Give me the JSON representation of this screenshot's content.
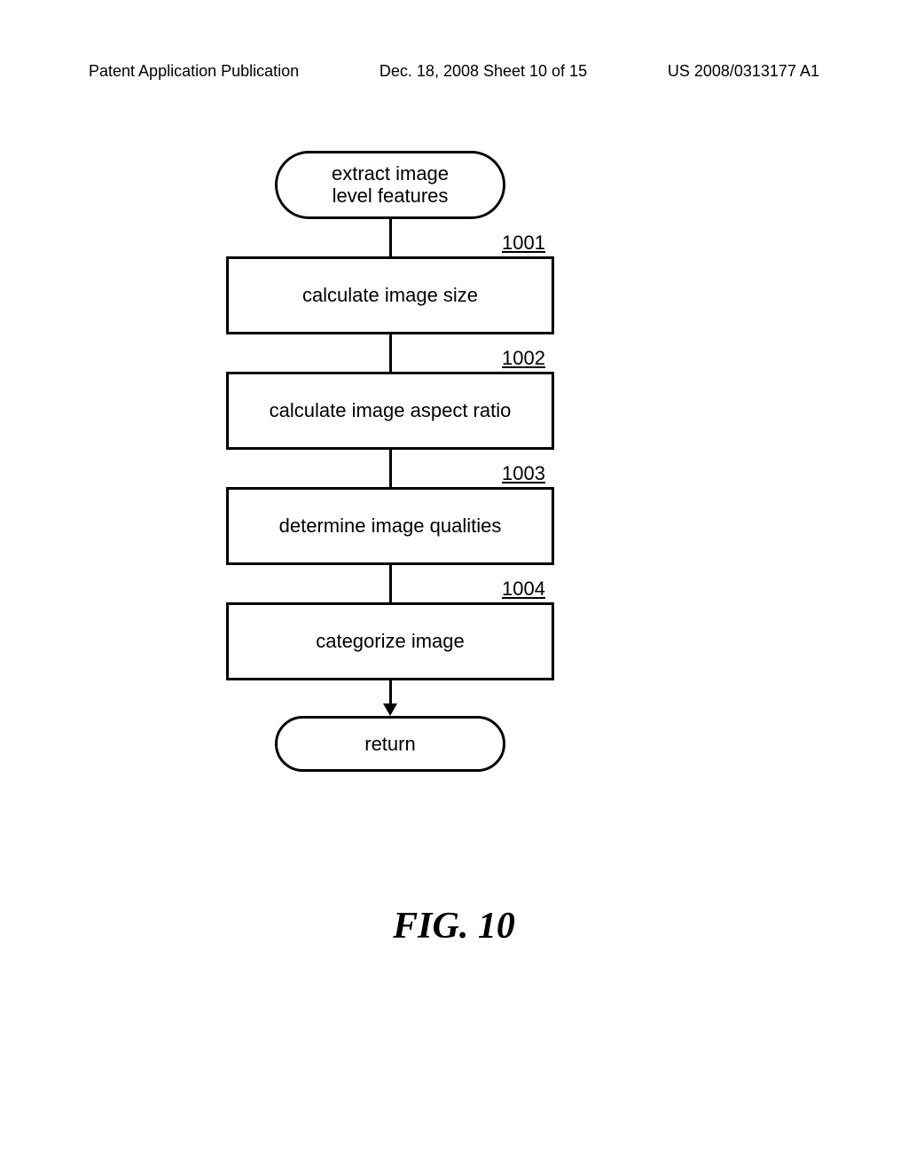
{
  "header": {
    "left": "Patent Application Publication",
    "center": "Dec. 18, 2008  Sheet 10 of 15",
    "right": "US 2008/0313177 A1"
  },
  "flowchart": {
    "type": "flowchart",
    "background_color": "#ffffff",
    "border_color": "#000000",
    "border_width": 3,
    "text_color": "#000000",
    "node_fontsize": 22,
    "label_fontsize": 22,
    "terminal_border_radius": 40,
    "process_width": 370,
    "terminal_width": 260,
    "connector_length": 42,
    "nodes": [
      {
        "id": "start",
        "shape": "terminal",
        "text": "extract image\nlevel features"
      },
      {
        "id": "n1",
        "shape": "process",
        "label": "1001",
        "text": "calculate image size"
      },
      {
        "id": "n2",
        "shape": "process",
        "label": "1002",
        "text": "calculate image aspect ratio"
      },
      {
        "id": "n3",
        "shape": "process",
        "label": "1003",
        "text": "determine image qualities"
      },
      {
        "id": "n4",
        "shape": "process",
        "label": "1004",
        "text": "categorize image"
      },
      {
        "id": "end",
        "shape": "terminal",
        "text": "return"
      }
    ],
    "edges": [
      {
        "from": "start",
        "to": "n1"
      },
      {
        "from": "n1",
        "to": "n2"
      },
      {
        "from": "n2",
        "to": "n3"
      },
      {
        "from": "n3",
        "to": "n4"
      },
      {
        "from": "n4",
        "to": "end",
        "arrow": true
      }
    ]
  },
  "figure_label": "FIG. 10"
}
